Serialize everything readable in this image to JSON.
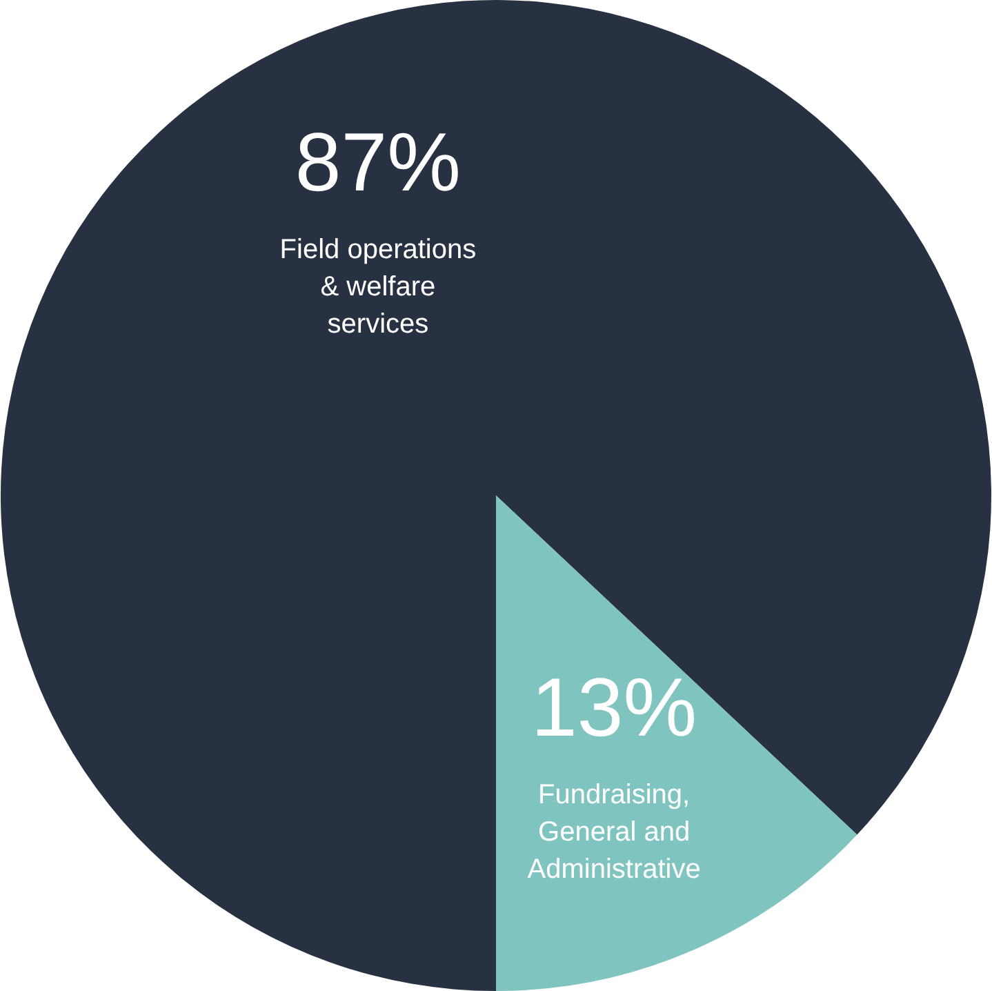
{
  "chart_data": {
    "type": "pie",
    "categories": [
      "Field operations & welfare services",
      "Fundraising, General and Administrative"
    ],
    "values": [
      87,
      13
    ],
    "colors": [
      "#273141",
      "#7fc4bf"
    ],
    "value_labels": [
      "87%",
      "13%"
    ],
    "legend": false
  }
}
